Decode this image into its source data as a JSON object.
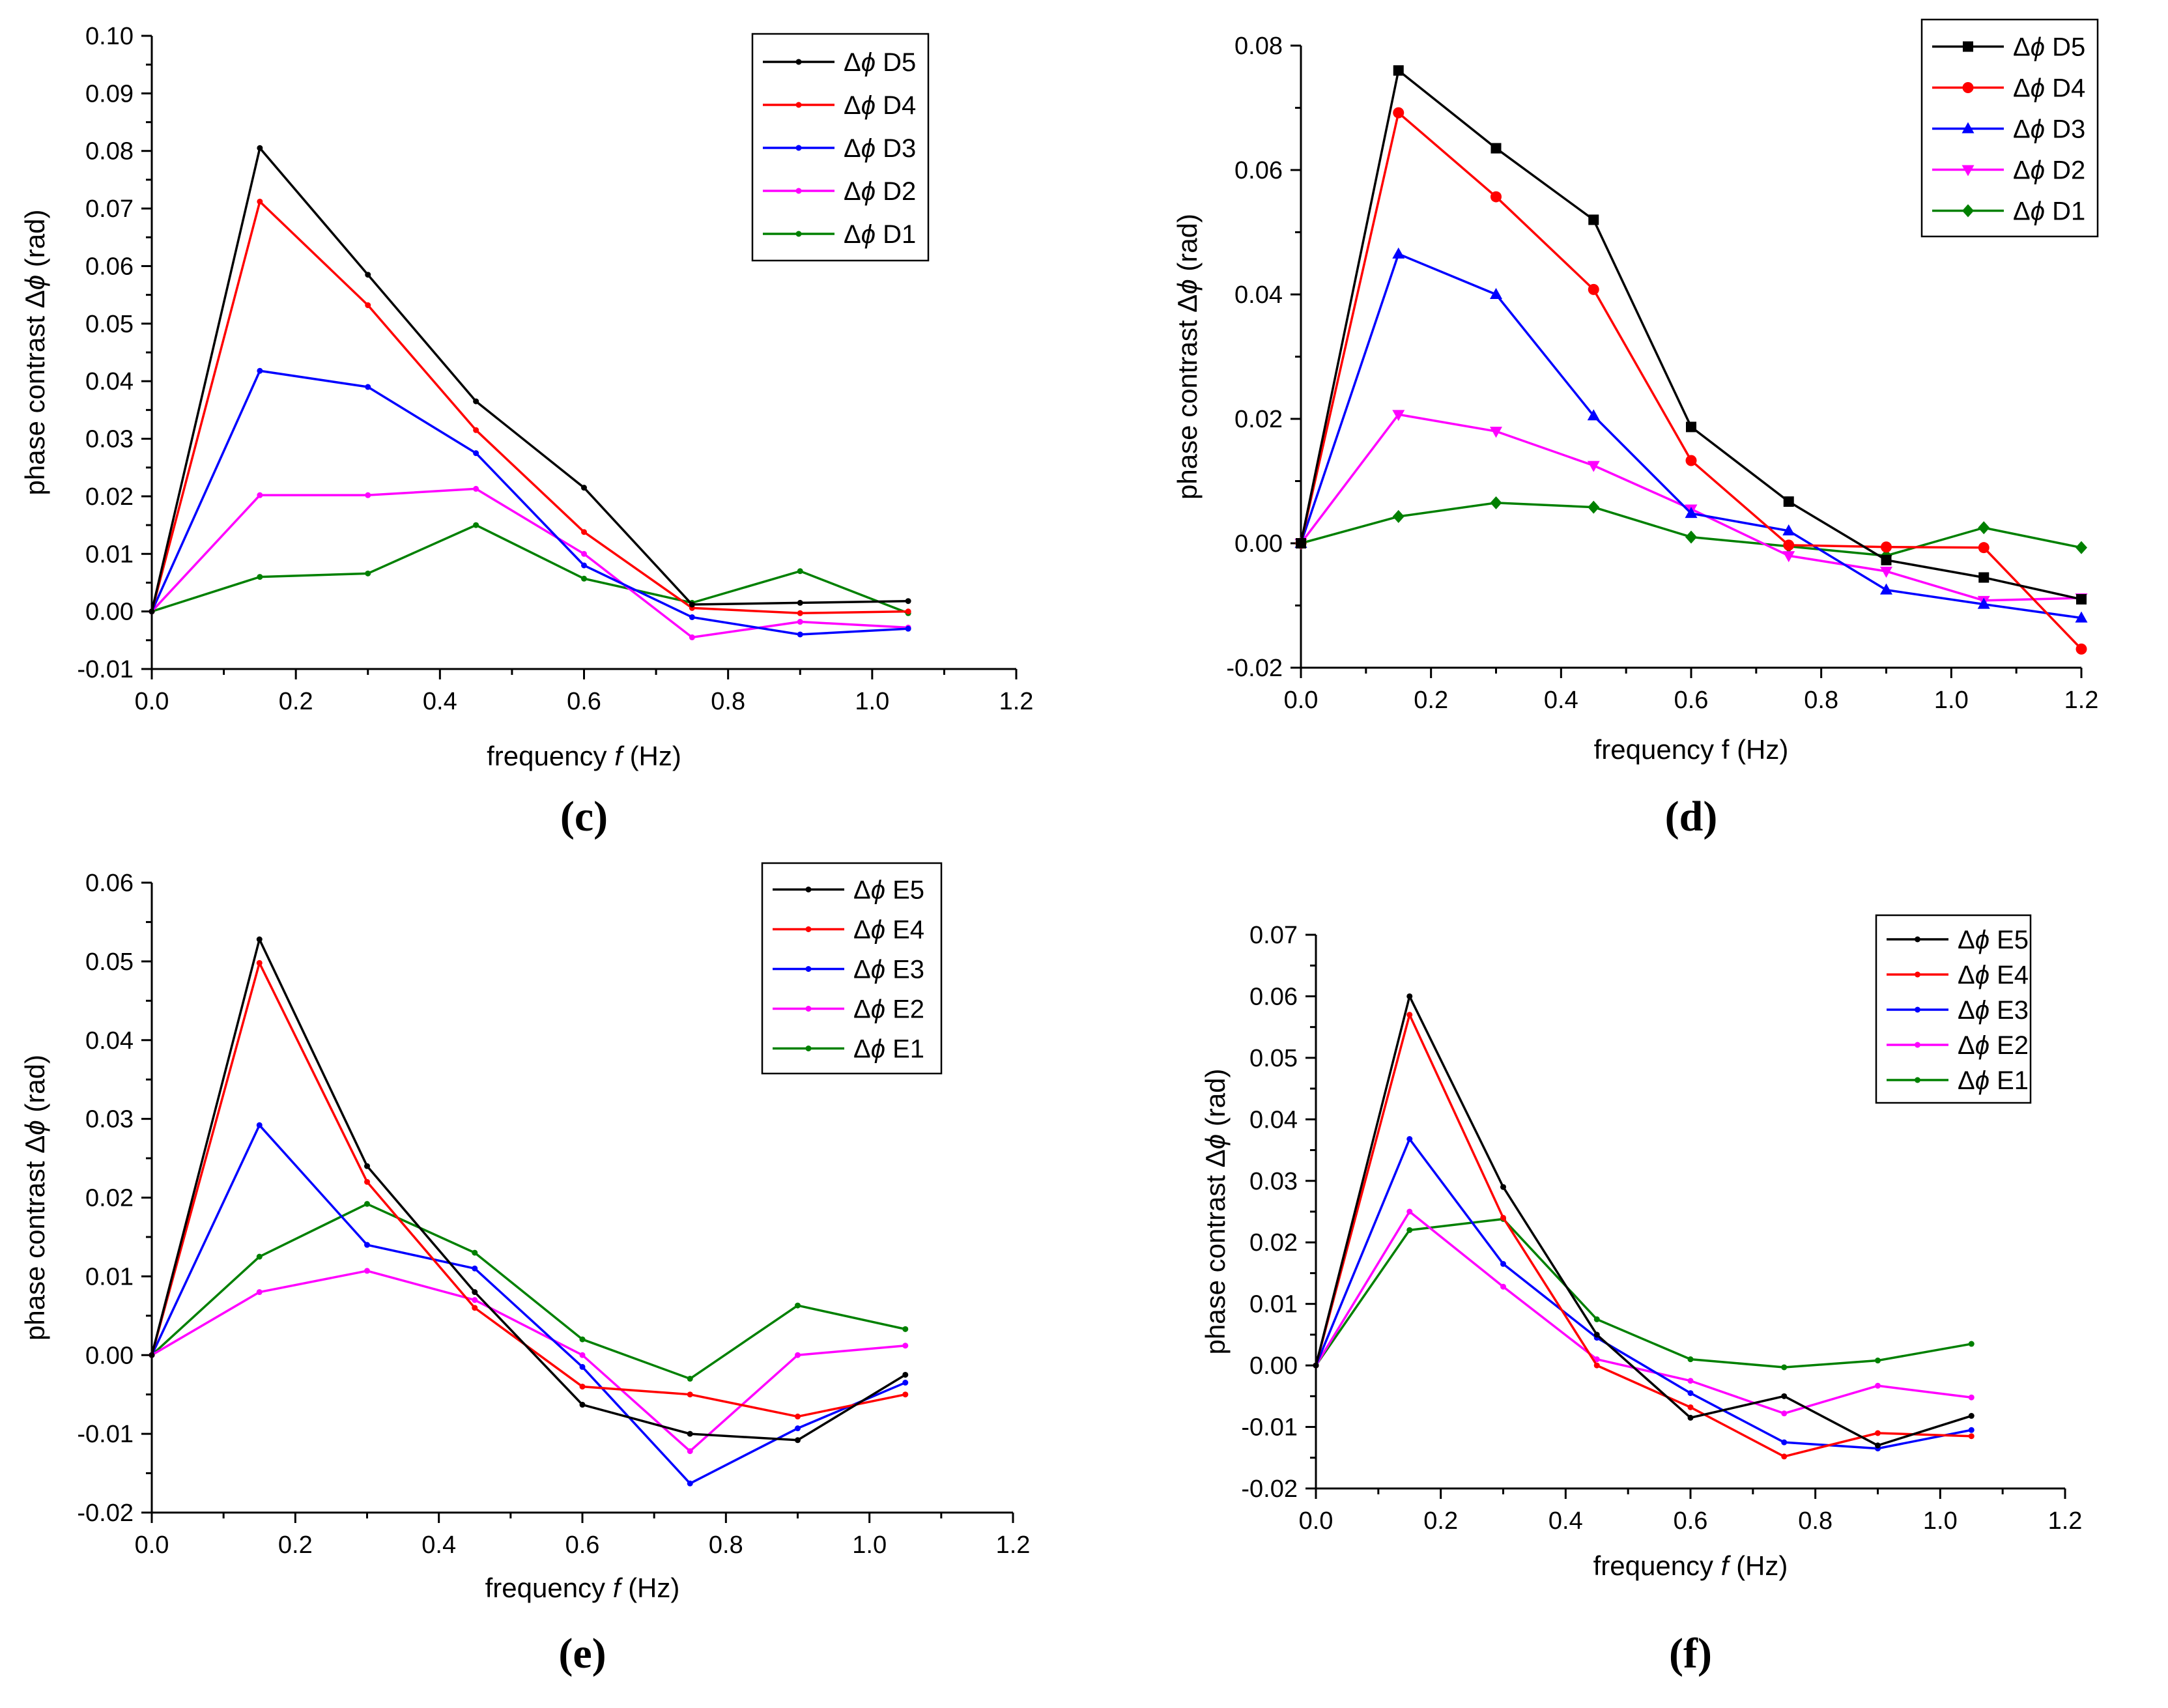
{
  "chart_data": [
    {
      "panel_label": "(c)",
      "type": "line",
      "xlabel_prefix": "frequency ",
      "xlabel_var": "f",
      "xlabel_suffix": " (Hz)",
      "ylabel_prefix": "phase contrast Δ",
      "ylabel_var": "ϕ",
      "ylabel_suffix": " (rad)",
      "xlim": [
        0,
        1.2
      ],
      "ylim": [
        -0.01,
        0.1
      ],
      "xticks": [
        0,
        0.2,
        0.4,
        0.6,
        0.8,
        1.0,
        1.2
      ],
      "xtick_labels": [
        "0.0",
        "0.2",
        "0.4",
        "0.6",
        "0.8",
        "1.0",
        "1.2"
      ],
      "yticks": [
        -0.01,
        0,
        0.01,
        0.02,
        0.03,
        0.04,
        0.05,
        0.06,
        0.07,
        0.08,
        0.09,
        0.1
      ],
      "ytick_labels": [
        "-0.01",
        "0.00",
        "0.01",
        "0.02",
        "0.03",
        "0.04",
        "0.05",
        "0.06",
        "0.07",
        "0.08",
        "0.09",
        "0.10"
      ],
      "legend_placement": "top-right",
      "x": [
        0,
        0.15,
        0.3,
        0.45,
        0.6,
        0.75,
        0.9,
        1.05
      ],
      "series": [
        {
          "name": "D5",
          "legend_prefix": "Δϕ ",
          "color": "#000000",
          "marker": "dot",
          "values": [
            0,
            0.0805,
            0.0585,
            0.0365,
            0.0215,
            0.0012,
            0.0015,
            0.0018
          ]
        },
        {
          "name": "D4",
          "legend_prefix": "Δϕ ",
          "color": "#ff0000",
          "marker": "dot",
          "values": [
            0,
            0.0712,
            0.0532,
            0.0315,
            0.0138,
            0.0006,
            -0.0003,
            0.0
          ]
        },
        {
          "name": "D3",
          "legend_prefix": "Δϕ ",
          "color": "#0000ff",
          "marker": "dot",
          "values": [
            0,
            0.0418,
            0.039,
            0.0275,
            0.008,
            -0.001,
            -0.004,
            -0.003
          ]
        },
        {
          "name": "D2",
          "legend_prefix": "Δϕ ",
          "color": "#ff00ff",
          "marker": "dot",
          "values": [
            0,
            0.0202,
            0.0202,
            0.0213,
            0.01,
            -0.0045,
            -0.0018,
            -0.0028
          ]
        },
        {
          "name": "D1",
          "legend_prefix": "Δϕ ",
          "color": "#008000",
          "marker": "dot",
          "values": [
            0,
            0.006,
            0.0066,
            0.015,
            0.0057,
            0.0015,
            0.007,
            -0.0003
          ]
        }
      ]
    },
    {
      "panel_label": "(d)",
      "type": "line",
      "xlabel_prefix": "frequency f (Hz)",
      "xlabel_var": "",
      "xlabel_suffix": "",
      "ylabel_prefix": "phase contrast Δ",
      "ylabel_var": "ϕ",
      "ylabel_suffix": " (rad)",
      "xlim": [
        0,
        1.2
      ],
      "ylim": [
        -0.02,
        0.08
      ],
      "xticks": [
        0,
        0.2,
        0.4,
        0.6,
        0.8,
        1.0,
        1.2
      ],
      "xtick_labels": [
        "0.0",
        "0.2",
        "0.4",
        "0.6",
        "0.8",
        "1.0",
        "1.2"
      ],
      "yticks": [
        -0.02,
        0,
        0.02,
        0.04,
        0.06,
        0.08
      ],
      "ytick_labels": [
        "-0.02",
        "0.00",
        "0.02",
        "0.04",
        "0.06",
        "0.08"
      ],
      "legend_placement": "top-right",
      "x": [
        0,
        0.15,
        0.3,
        0.45,
        0.6,
        0.75,
        0.9,
        1.05,
        1.2
      ],
      "series": [
        {
          "name": "D5",
          "legend_prefix": "Δϕ ",
          "color": "#000000",
          "marker": "square",
          "values": [
            0,
            0.076,
            0.0635,
            0.052,
            0.0187,
            0.0067,
            -0.0027,
            -0.0055,
            -0.009
          ]
        },
        {
          "name": "D4",
          "legend_prefix": "Δϕ ",
          "color": "#ff0000",
          "marker": "circle",
          "values": [
            0,
            0.0692,
            0.0557,
            0.0408,
            0.0133,
            -0.0003,
            -0.0006,
            -0.0007,
            -0.017
          ]
        },
        {
          "name": "D3",
          "legend_prefix": "Δϕ ",
          "color": "#0000ff",
          "marker": "triangle-up",
          "values": [
            0,
            0.0465,
            0.04,
            0.0205,
            0.0048,
            0.002,
            -0.0075,
            -0.0098,
            -0.012
          ]
        },
        {
          "name": "D2",
          "legend_prefix": "Δϕ ",
          "color": "#ff00ff",
          "marker": "triangle-down",
          "values": [
            0,
            0.0207,
            0.018,
            0.0125,
            0.0055,
            -0.002,
            -0.0045,
            -0.0092,
            -0.0088
          ]
        },
        {
          "name": "D1",
          "legend_prefix": "Δϕ ",
          "color": "#008000",
          "marker": "diamond",
          "values": [
            0,
            0.0043,
            0.0065,
            0.0058,
            0.001,
            -0.0005,
            -0.002,
            0.0025,
            -0.0007
          ]
        }
      ]
    },
    {
      "panel_label": "(e)",
      "type": "line",
      "xlabel_prefix": "frequency ",
      "xlabel_var": "f",
      "xlabel_suffix": " (Hz)",
      "ylabel_prefix": "phase contrast Δ",
      "ylabel_var": "ϕ",
      "ylabel_suffix": " (rad)",
      "xlim": [
        0,
        1.2
      ],
      "ylim": [
        -0.02,
        0.06
      ],
      "xticks": [
        0,
        0.2,
        0.4,
        0.6,
        0.8,
        1.0,
        1.2
      ],
      "xtick_labels": [
        "0.0",
        "0.2",
        "0.4",
        "0.6",
        "0.8",
        "1.0",
        "1.2"
      ],
      "yticks": [
        -0.02,
        -0.01,
        0,
        0.01,
        0.02,
        0.03,
        0.04,
        0.05,
        0.06
      ],
      "ytick_labels": [
        "-0.02",
        "-0.01",
        "0.00",
        "0.01",
        "0.02",
        "0.03",
        "0.04",
        "0.05",
        "0.06"
      ],
      "legend_placement": "top-right",
      "x": [
        0,
        0.15,
        0.3,
        0.45,
        0.6,
        0.75,
        0.9,
        1.05
      ],
      "series": [
        {
          "name": "E5",
          "legend_prefix": "Δϕ ",
          "color": "#000000",
          "marker": "dot",
          "values": [
            0,
            0.0528,
            0.024,
            0.008,
            -0.0063,
            -0.01,
            -0.0108,
            -0.0025
          ]
        },
        {
          "name": "E4",
          "legend_prefix": "Δϕ ",
          "color": "#ff0000",
          "marker": "dot",
          "values": [
            0,
            0.0498,
            0.022,
            0.006,
            -0.004,
            -0.005,
            -0.0078,
            -0.005
          ]
        },
        {
          "name": "E3",
          "legend_prefix": "Δϕ ",
          "color": "#0000ff",
          "marker": "dot",
          "values": [
            0,
            0.0292,
            0.014,
            0.011,
            -0.0015,
            -0.0163,
            -0.0093,
            -0.0035
          ]
        },
        {
          "name": "E2",
          "legend_prefix": "Δϕ ",
          "color": "#ff00ff",
          "marker": "dot",
          "values": [
            0,
            0.008,
            0.0107,
            0.007,
            0.0,
            -0.0122,
            0.0,
            0.0012
          ]
        },
        {
          "name": "E1",
          "legend_prefix": "Δϕ ",
          "color": "#008000",
          "marker": "dot",
          "values": [
            0,
            0.0125,
            0.0192,
            0.013,
            0.002,
            -0.003,
            0.0063,
            0.0033
          ]
        }
      ]
    },
    {
      "panel_label": "(f)",
      "type": "line",
      "xlabel_prefix": "frequency ",
      "xlabel_var": "f",
      "xlabel_suffix": " (Hz)",
      "ylabel_prefix": "phase contrast Δ",
      "ylabel_var": "ϕ",
      "ylabel_suffix": " (rad)",
      "xlim": [
        0,
        1.2
      ],
      "ylim": [
        -0.02,
        0.07
      ],
      "xticks": [
        0,
        0.2,
        0.4,
        0.6,
        0.8,
        1.0,
        1.2
      ],
      "xtick_labels": [
        "0.0",
        "0.2",
        "0.4",
        "0.6",
        "0.8",
        "1.0",
        "1.2"
      ],
      "yticks": [
        -0.02,
        -0.01,
        0,
        0.01,
        0.02,
        0.03,
        0.04,
        0.05,
        0.06,
        0.07
      ],
      "ytick_labels": [
        "-0.02",
        "-0.01",
        "0.00",
        "0.01",
        "0.02",
        "0.03",
        "0.04",
        "0.05",
        "0.06",
        "0.07"
      ],
      "legend_placement": "top-right",
      "x": [
        0,
        0.15,
        0.3,
        0.45,
        0.6,
        0.75,
        0.9,
        1.05
      ],
      "series": [
        {
          "name": "E5",
          "legend_prefix": "Δϕ ",
          "color": "#000000",
          "marker": "dot",
          "values": [
            0,
            0.06,
            0.029,
            0.005,
            -0.0085,
            -0.005,
            -0.013,
            -0.0082
          ]
        },
        {
          "name": "E4",
          "legend_prefix": "Δϕ ",
          "color": "#ff0000",
          "marker": "dot",
          "values": [
            0,
            0.057,
            0.024,
            0.0,
            -0.0068,
            -0.0148,
            -0.011,
            -0.0115
          ]
        },
        {
          "name": "E3",
          "legend_prefix": "Δϕ ",
          "color": "#0000ff",
          "marker": "dot",
          "values": [
            0,
            0.0368,
            0.0165,
            0.0045,
            -0.0045,
            -0.0125,
            -0.0135,
            -0.0105
          ]
        },
        {
          "name": "E2",
          "legend_prefix": "Δϕ ",
          "color": "#ff00ff",
          "marker": "dot",
          "values": [
            0,
            0.025,
            0.0128,
            0.001,
            -0.0025,
            -0.0078,
            -0.0033,
            -0.0052
          ]
        },
        {
          "name": "E1",
          "legend_prefix": "Δϕ ",
          "color": "#008000",
          "marker": "dot",
          "values": [
            0,
            0.022,
            0.0238,
            0.0075,
            0.001,
            -0.0003,
            0.0008,
            0.0035
          ]
        }
      ]
    }
  ]
}
